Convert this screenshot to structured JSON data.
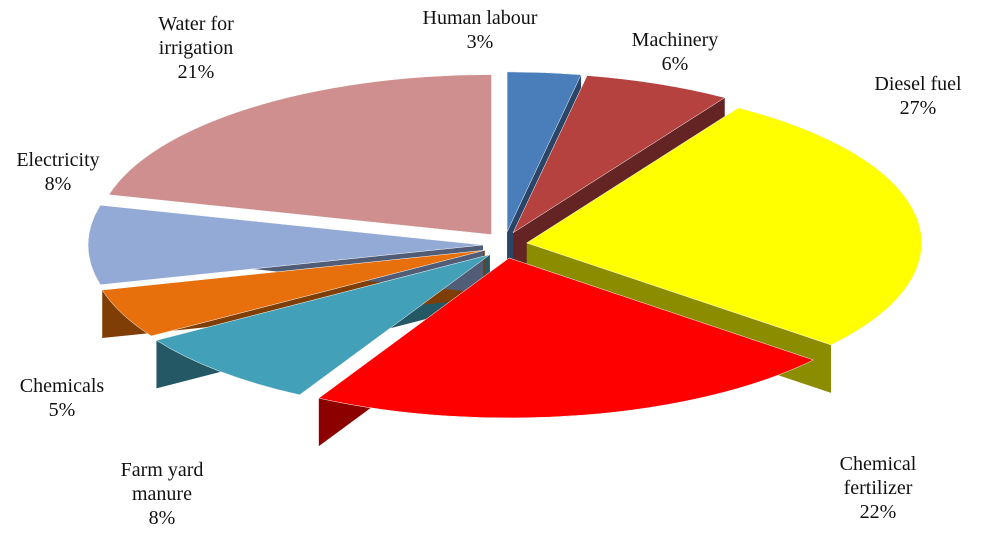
{
  "chart_data": {
    "type": "pie",
    "categories": [
      "Human labour",
      "Machinery",
      "Diesel fuel",
      "Chemical fertilizer",
      "Farm yard manure",
      "Chemicals",
      "Electricity",
      "Water for irrigation"
    ],
    "values": [
      3,
      6,
      27,
      22,
      8,
      5,
      8,
      21
    ],
    "value_labels": [
      "3%",
      "6%",
      "27%",
      "22%",
      "8%",
      "5%",
      "8%",
      "21%"
    ],
    "colors": [
      "#4a7ebb",
      "#b5423f",
      "#ffff00",
      "#ff0000",
      "#42a0b8",
      "#e8700c",
      "#93a9d6",
      "#cf8f8f"
    ]
  }
}
